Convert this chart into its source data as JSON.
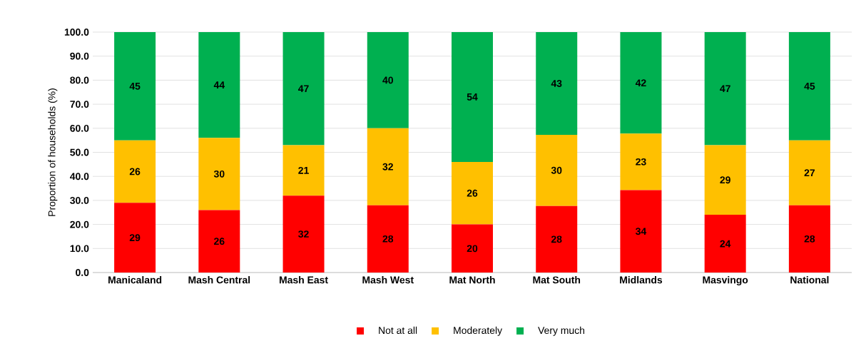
{
  "chart_data": {
    "type": "bar",
    "stacked": true,
    "ylabel": "Proportion of households (%)",
    "categories": [
      "Manicaland",
      "Mash Central",
      "Mash East",
      "Mash West",
      "Mat North",
      "Mat South",
      "Midlands",
      "Masvingo",
      "National"
    ],
    "series": [
      {
        "name": "Not at all",
        "color": "#ff0000",
        "values": [
          29,
          26,
          32,
          28,
          20,
          27.7,
          34.3,
          24,
          28
        ],
        "value_labels": [
          "29",
          "26",
          "32",
          "28",
          "20",
          "28",
          "34",
          "24",
          "28"
        ]
      },
      {
        "name": "Moderately",
        "color": "#ffc000",
        "values": [
          26,
          30,
          21,
          32,
          26,
          29.6,
          23.5,
          29,
          27
        ],
        "value_labels": [
          "26",
          "30",
          "21",
          "32",
          "26",
          "30",
          "23",
          "29",
          "27"
        ]
      },
      {
        "name": "Very much",
        "color": "#00b050",
        "values": [
          45,
          44,
          47,
          40,
          54,
          42.7,
          42.2,
          47,
          45
        ],
        "value_labels": [
          "45",
          "44",
          "47",
          "40",
          "54",
          "43",
          "42",
          "47",
          "45"
        ]
      }
    ],
    "ylim": [
      0,
      100
    ],
    "yticks": [
      {
        "value": 0,
        "label": "0.0"
      },
      {
        "value": 10,
        "label": "10.0"
      },
      {
        "value": 20,
        "label": "20.0"
      },
      {
        "value": 30,
        "label": "30.0"
      },
      {
        "value": 40,
        "label": "40.0"
      },
      {
        "value": 50,
        "label": "50.0"
      },
      {
        "value": 60,
        "label": "60.0"
      },
      {
        "value": 70,
        "label": "70.0"
      },
      {
        "value": 80,
        "label": "80.0"
      },
      {
        "value": 90,
        "label": "90.0"
      },
      {
        "value": 100,
        "label": "100.0"
      }
    ],
    "grid": "y",
    "legend": "bottom"
  }
}
